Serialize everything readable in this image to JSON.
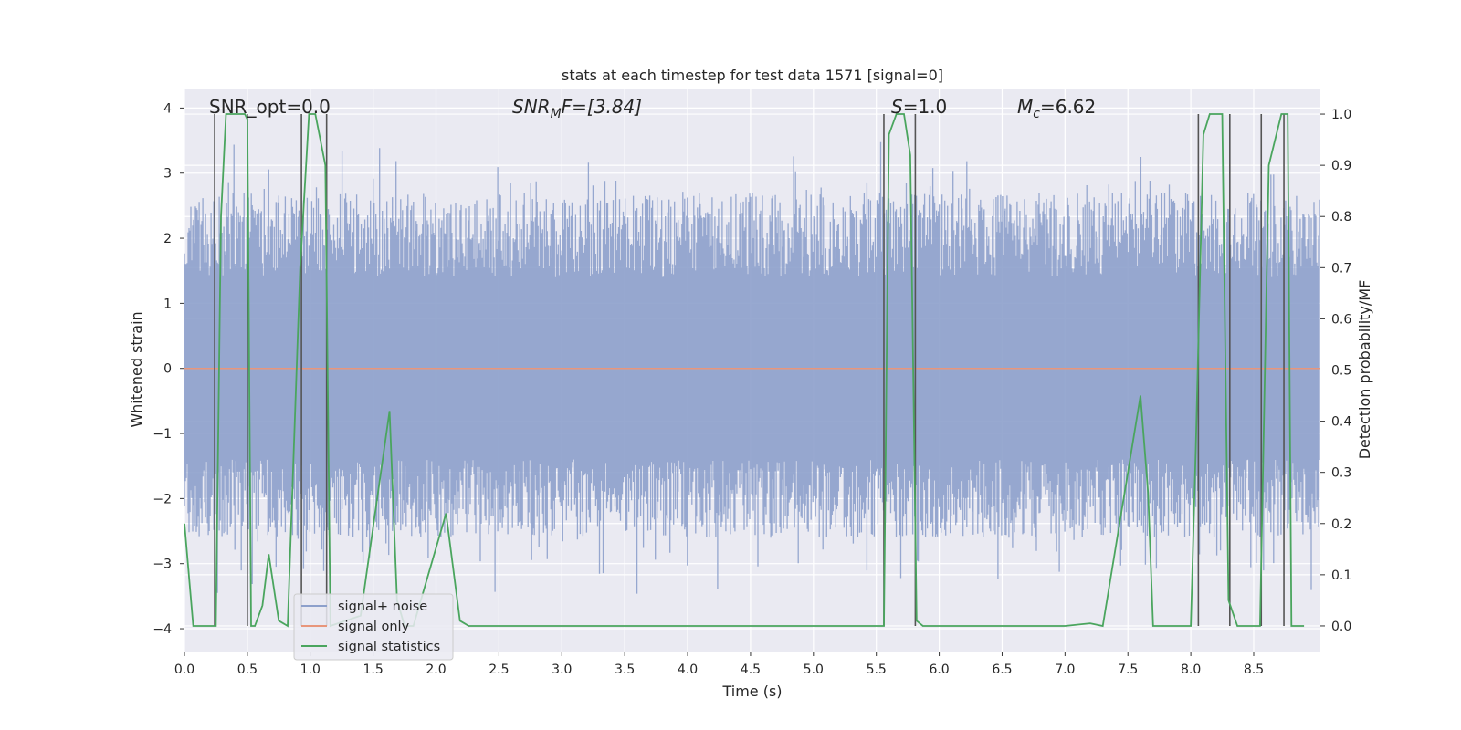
{
  "chart_data": {
    "type": "line",
    "title": "stats at each timestep for test data 1571 [signal=0]",
    "xlabel": "Time (s)",
    "ylabel_left": "Whitened strain",
    "ylabel_right": "Detection probability/MF",
    "xlim": [
      0.0,
      9.03
    ],
    "ylim_left": [
      -4.35,
      4.3
    ],
    "ylim_right": [
      -0.05,
      1.05
    ],
    "x_ticks": [
      "0.0",
      "0.5",
      "1.0",
      "1.5",
      "2.0",
      "2.5",
      "3.0",
      "3.5",
      "4.0",
      "4.5",
      "5.0",
      "5.5",
      "6.0",
      "6.5",
      "7.0",
      "7.5",
      "8.0",
      "8.5"
    ],
    "y_ticks_left": [
      "4",
      "3",
      "2",
      "1",
      "0",
      "−1",
      "−2",
      "−3",
      "−4"
    ],
    "y_ticks_right": [
      "1.0",
      "0.9",
      "0.8",
      "0.7",
      "0.6",
      "0.5",
      "0.4",
      "0.3",
      "0.2",
      "0.1",
      "0.0"
    ],
    "annotations": {
      "snr_opt": "SNR_opt=0.0",
      "snr_mf_prefix": "SNR",
      "snr_mf_sub": "M",
      "snr_mf_suffix": "F=[3.84]",
      "s_prefix": "S",
      "s_value": "=1.0",
      "mc_prefix": "M",
      "mc_sub": "c",
      "mc_value": "=6.62"
    },
    "series": [
      {
        "name": "signal+ noise",
        "color": "#8da0cb",
        "kind": "whitened noise, amplitude ± ~2 to 4, sampled densely over 0–9 s"
      },
      {
        "name": "signal only",
        "color": "#e8967b",
        "constant_value": 0.0
      },
      {
        "name": "signal statistics",
        "color": "#4aa55e",
        "axis": "right",
        "x": [
          0.0,
          0.07,
          0.25,
          0.29,
          0.33,
          0.4,
          0.48,
          0.5,
          0.53,
          0.56,
          0.62,
          0.67,
          0.75,
          0.82,
          0.92,
          0.99,
          1.04,
          1.12,
          1.16,
          1.4,
          1.63,
          1.69,
          1.75,
          1.82,
          2.08,
          2.19,
          2.26,
          2.33,
          2.5,
          3.0,
          4.0,
          5.0,
          5.56,
          5.6,
          5.66,
          5.72,
          5.77,
          5.82,
          5.87,
          5.93,
          6.0,
          6.5,
          7.0,
          7.2,
          7.3,
          7.6,
          7.66,
          7.7,
          7.76,
          8.0,
          8.04,
          8.1,
          8.15,
          8.25,
          8.3,
          8.37,
          8.55,
          8.62,
          8.72,
          8.77,
          8.8,
          8.9
        ],
        "values": [
          0.2,
          0.0,
          0.0,
          0.8,
          1.0,
          1.0,
          1.0,
          0.99,
          0.0,
          0.0,
          0.04,
          0.14,
          0.01,
          0.0,
          0.7,
          1.0,
          1.0,
          0.9,
          0.0,
          0.02,
          0.42,
          0.05,
          0.0,
          0.0,
          0.22,
          0.01,
          0.0,
          0.0,
          0.0,
          0.0,
          0.0,
          0.0,
          0.0,
          0.96,
          1.0,
          1.0,
          0.92,
          0.01,
          0.0,
          0.0,
          0.0,
          0.0,
          0.0,
          0.005,
          0.0,
          0.45,
          0.26,
          0.0,
          0.0,
          0.0,
          0.35,
          0.96,
          1.0,
          1.0,
          0.05,
          0.0,
          0.0,
          0.9,
          1.0,
          1.0,
          0.0,
          0.0
        ]
      }
    ],
    "markers": {
      "color": "#555555",
      "x": [
        0.24,
        0.5,
        0.93,
        1.13,
        5.56,
        5.81,
        8.06,
        8.31,
        8.56,
        8.74
      ]
    },
    "legend": {
      "placement": "lower-left",
      "entries": [
        "signal+ noise",
        "signal only",
        "signal statistics"
      ]
    }
  }
}
